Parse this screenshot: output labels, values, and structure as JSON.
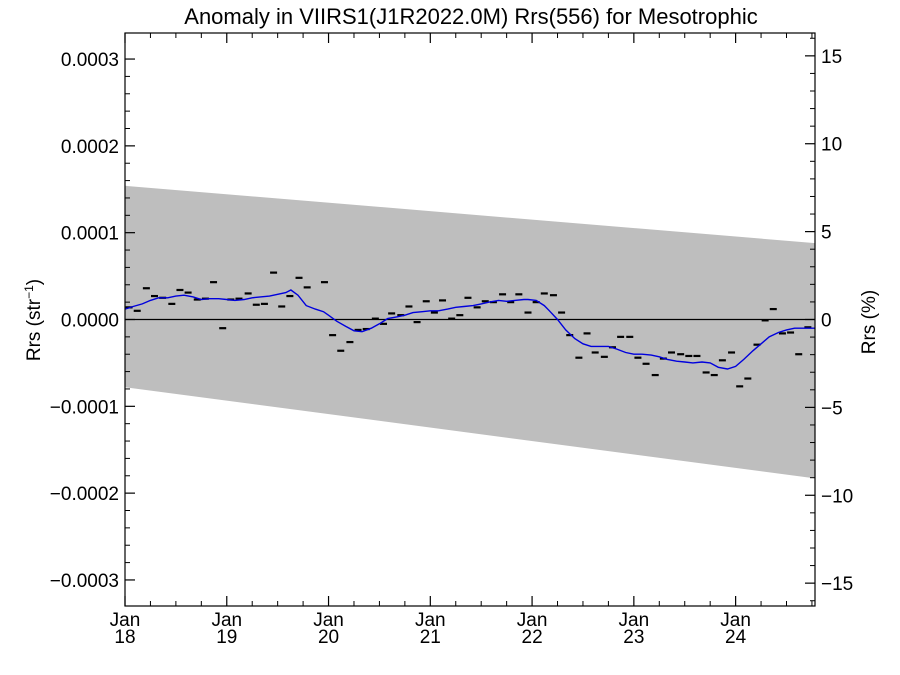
{
  "chart_data": {
    "type": "scatter",
    "title": "Anomaly in VIIRS1(J1R2022.0M) Rrs(556) for Mesotrophic",
    "ylabel_left": {
      "main": "Rrs (str",
      "sup": "−1",
      "close": ")"
    },
    "ylabel_right": "Rrs (%)",
    "xlim": [
      2018.0,
      2024.78
    ],
    "ylim_left": [
      -0.00033,
      0.00033
    ],
    "ylim_right": [
      -16.3,
      16.3
    ],
    "y_ticks_left": [
      {
        "value": -0.0003,
        "label": "−0.0003"
      },
      {
        "value": -0.0002,
        "label": "−0.0002"
      },
      {
        "value": -0.0001,
        "label": "−0.0001"
      },
      {
        "value": 0.0,
        "label": "0.0000"
      },
      {
        "value": 0.0001,
        "label": "0.0001"
      },
      {
        "value": 0.0002,
        "label": "0.0002"
      },
      {
        "value": 0.0003,
        "label": "0.0003"
      }
    ],
    "y_ticks_right": [
      {
        "value": -15,
        "label": "−15"
      },
      {
        "value": -10,
        "label": "−10"
      },
      {
        "value": -5,
        "label": "−5"
      },
      {
        "value": 0,
        "label": "0"
      },
      {
        "value": 5,
        "label": "5"
      },
      {
        "value": 10,
        "label": "10"
      },
      {
        "value": 15,
        "label": "15"
      }
    ],
    "x_ticks": [
      {
        "value": 2018,
        "month": "Jan",
        "year": "18"
      },
      {
        "value": 2019,
        "month": "Jan",
        "year": "19"
      },
      {
        "value": 2020,
        "month": "Jan",
        "year": "20"
      },
      {
        "value": 2021,
        "month": "Jan",
        "year": "21"
      },
      {
        "value": 2022,
        "month": "Jan",
        "year": "22"
      },
      {
        "value": 2023,
        "month": "Jan",
        "year": "23"
      },
      {
        "value": 2024,
        "month": "Jan",
        "year": "24"
      }
    ],
    "uncertainty_band": {
      "upper": [
        [
          2018.0,
          0.000154
        ],
        [
          2024.78,
          8.8e-05
        ]
      ],
      "lower": [
        [
          2018.0,
          -7.8e-05
        ],
        [
          2024.78,
          -0.000183
        ]
      ],
      "color": "#bebebe"
    },
    "zero_line": 0.0,
    "monthly_anomalies": [
      [
        2018.04,
        1.4e-05
      ],
      [
        2018.12,
        1e-05
      ],
      [
        2018.21,
        3.6e-05
      ],
      [
        2018.29,
        2.7e-05
      ],
      [
        2018.37,
        2.5e-05
      ],
      [
        2018.46,
        1.8e-05
      ],
      [
        2018.54,
        3.4e-05
      ],
      [
        2018.62,
        3.1e-05
      ],
      [
        2018.71,
        2.3e-05
      ],
      [
        2018.79,
        2.4e-05
      ],
      [
        2018.87,
        4.3e-05
      ],
      [
        2018.96,
        -1e-05
      ],
      [
        2019.04,
        2.3e-05
      ],
      [
        2019.12,
        2.4e-05
      ],
      [
        2019.21,
        3e-05
      ],
      [
        2019.29,
        1.7e-05
      ],
      [
        2019.37,
        1.8e-05
      ],
      [
        2019.46,
        5.4e-05
      ],
      [
        2019.54,
        1.5e-05
      ],
      [
        2019.62,
        2.7e-05
      ],
      [
        2019.71,
        4.8e-05
      ],
      [
        2019.79,
        3.7e-05
      ],
      [
        2019.96,
        4.3e-05
      ],
      [
        2020.04,
        -1.8e-05
      ],
      [
        2020.12,
        -3.6e-05
      ],
      [
        2020.21,
        -2.6e-05
      ],
      [
        2020.29,
        -1.2e-05
      ],
      [
        2020.37,
        -1.1e-05
      ],
      [
        2020.46,
        1e-06
      ],
      [
        2020.54,
        -5e-06
      ],
      [
        2020.62,
        7e-06
      ],
      [
        2020.71,
        5e-06
      ],
      [
        2020.79,
        1.5e-05
      ],
      [
        2020.87,
        -3e-06
      ],
      [
        2020.96,
        2.1e-05
      ],
      [
        2021.04,
        8e-06
      ],
      [
        2021.12,
        2.2e-05
      ],
      [
        2021.21,
        1e-06
      ],
      [
        2021.29,
        5e-06
      ],
      [
        2021.37,
        2.5e-05
      ],
      [
        2021.46,
        1.4e-05
      ],
      [
        2021.54,
        2.1e-05
      ],
      [
        2021.62,
        2e-05
      ],
      [
        2021.71,
        2.9e-05
      ],
      [
        2021.79,
        2e-05
      ],
      [
        2021.87,
        2.9e-05
      ],
      [
        2021.96,
        8e-06
      ],
      [
        2022.04,
        2e-05
      ],
      [
        2022.12,
        3e-05
      ],
      [
        2022.21,
        2.8e-05
      ],
      [
        2022.29,
        8e-06
      ],
      [
        2022.37,
        -1.8e-05
      ],
      [
        2022.46,
        -4.4e-05
      ],
      [
        2022.54,
        -1.6e-05
      ],
      [
        2022.62,
        -3.8e-05
      ],
      [
        2022.71,
        -4.3e-05
      ],
      [
        2022.79,
        -3.2e-05
      ],
      [
        2022.87,
        -2e-05
      ],
      [
        2022.96,
        -2e-05
      ],
      [
        2023.04,
        -4.4e-05
      ],
      [
        2023.12,
        -5.1e-05
      ],
      [
        2023.21,
        -6.4e-05
      ],
      [
        2023.29,
        -4.5e-05
      ],
      [
        2023.37,
        -3.8e-05
      ],
      [
        2023.46,
        -4e-05
      ],
      [
        2023.54,
        -4.2e-05
      ],
      [
        2023.62,
        -4.2e-05
      ],
      [
        2023.71,
        -6.1e-05
      ],
      [
        2023.79,
        -6.4e-05
      ],
      [
        2023.87,
        -4.7e-05
      ],
      [
        2023.96,
        -3.8e-05
      ],
      [
        2024.04,
        -7.7e-05
      ],
      [
        2024.12,
        -6.8e-05
      ],
      [
        2024.21,
        -2.9e-05
      ],
      [
        2024.29,
        -1e-06
      ],
      [
        2024.37,
        1.2e-05
      ],
      [
        2024.46,
        -1.6e-05
      ],
      [
        2024.54,
        -1.5e-05
      ],
      [
        2024.62,
        -4e-05
      ],
      [
        2024.71,
        -9e-06
      ]
    ],
    "running_mean": {
      "color": "#0000dd",
      "points": [
        [
          2018.0,
          1.2e-05
        ],
        [
          2018.08,
          1.5e-05
        ],
        [
          2018.17,
          1.8e-05
        ],
        [
          2018.25,
          2.2e-05
        ],
        [
          2018.33,
          2.5e-05
        ],
        [
          2018.42,
          2.5e-05
        ],
        [
          2018.5,
          2.7e-05
        ],
        [
          2018.58,
          2.8e-05
        ],
        [
          2018.67,
          2.6e-05
        ],
        [
          2018.75,
          2.3e-05
        ],
        [
          2018.83,
          2.4e-05
        ],
        [
          2018.92,
          2.4e-05
        ],
        [
          2019.0,
          2.3e-05
        ],
        [
          2019.08,
          2.2e-05
        ],
        [
          2019.17,
          2.3e-05
        ],
        [
          2019.25,
          2.5e-05
        ],
        [
          2019.33,
          2.6e-05
        ],
        [
          2019.42,
          2.7e-05
        ],
        [
          2019.5,
          2.9e-05
        ],
        [
          2019.58,
          3.1e-05
        ],
        [
          2019.63,
          3.4e-05
        ],
        [
          2019.7,
          2.8e-05
        ],
        [
          2019.78,
          1.6e-05
        ],
        [
          2019.87,
          1.2e-05
        ],
        [
          2019.95,
          9e-06
        ],
        [
          2020.0,
          5e-06
        ],
        [
          2020.08,
          -2e-06
        ],
        [
          2020.17,
          -8e-06
        ],
        [
          2020.25,
          -1.3e-05
        ],
        [
          2020.33,
          -1.4e-05
        ],
        [
          2020.42,
          -1e-05
        ],
        [
          2020.5,
          -5e-06
        ],
        [
          2020.58,
          1e-06
        ],
        [
          2020.67,
          3e-06
        ],
        [
          2020.75,
          5e-06
        ],
        [
          2020.83,
          8e-06
        ],
        [
          2020.92,
          9e-06
        ],
        [
          2021.0,
          1e-05
        ],
        [
          2021.08,
          1e-05
        ],
        [
          2021.17,
          1.2e-05
        ],
        [
          2021.25,
          1.4e-05
        ],
        [
          2021.33,
          1.5e-05
        ],
        [
          2021.42,
          1.6e-05
        ],
        [
          2021.5,
          1.8e-05
        ],
        [
          2021.58,
          2e-05
        ],
        [
          2021.67,
          2.2e-05
        ],
        [
          2021.75,
          2.1e-05
        ],
        [
          2021.83,
          2.2e-05
        ],
        [
          2021.92,
          2.3e-05
        ],
        [
          2021.96,
          2.3e-05
        ],
        [
          2022.04,
          2.2e-05
        ],
        [
          2022.12,
          1.6e-05
        ],
        [
          2022.17,
          1e-05
        ],
        [
          2022.25,
          0.0
        ],
        [
          2022.33,
          -1.2e-05
        ],
        [
          2022.42,
          -2.2e-05
        ],
        [
          2022.5,
          -2.8e-05
        ],
        [
          2022.58,
          -3.1e-05
        ],
        [
          2022.67,
          -3.1e-05
        ],
        [
          2022.75,
          -3.1e-05
        ],
        [
          2022.83,
          -3.4e-05
        ],
        [
          2022.92,
          -3.8e-05
        ],
        [
          2023.0,
          -4e-05
        ],
        [
          2023.08,
          -4e-05
        ],
        [
          2023.17,
          -4.1e-05
        ],
        [
          2023.25,
          -4.3e-05
        ],
        [
          2023.33,
          -4.6e-05
        ],
        [
          2023.42,
          -4.8e-05
        ],
        [
          2023.5,
          -4.9e-05
        ],
        [
          2023.58,
          -5e-05
        ],
        [
          2023.67,
          -4.9e-05
        ],
        [
          2023.75,
          -5e-05
        ],
        [
          2023.83,
          -5.5e-05
        ],
        [
          2023.92,
          -5.7e-05
        ],
        [
          2024.0,
          -5.4e-05
        ],
        [
          2024.08,
          -4.6e-05
        ],
        [
          2024.17,
          -3.6e-05
        ],
        [
          2024.25,
          -2.8e-05
        ],
        [
          2024.33,
          -2e-05
        ],
        [
          2024.42,
          -1.5e-05
        ],
        [
          2024.5,
          -1.2e-05
        ],
        [
          2024.58,
          -1e-05
        ],
        [
          2024.67,
          -1e-05
        ],
        [
          2024.78,
          -1e-05
        ]
      ]
    }
  }
}
